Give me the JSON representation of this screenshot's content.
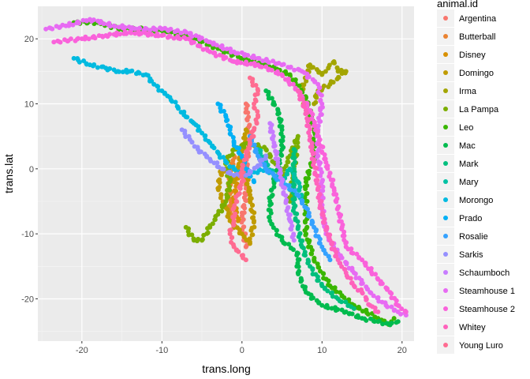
{
  "chart_data": {
    "type": "scatter",
    "title": "",
    "xlabel": "trans.long",
    "ylabel": "trans.lat",
    "xlim": [
      -25.5,
      21.5
    ],
    "ylim": [
      -26.5,
      25
    ],
    "x_ticks": [
      -20,
      -10,
      0,
      10,
      20
    ],
    "y_ticks": [
      -20,
      -10,
      0,
      10,
      20
    ],
    "x_tick_labels": [
      "-20",
      "-10",
      "0",
      "10",
      "20"
    ],
    "y_tick_labels": [
      "-20",
      "-10",
      "0",
      "10",
      "20"
    ],
    "grid": true,
    "panel_background": "#ebebeb",
    "legend": {
      "title": "animal.id",
      "placement": "right"
    },
    "series": [
      {
        "name": "Argentina",
        "color": "#F8766D",
        "values": [
          [
            0.5,
            10
          ],
          [
            1,
            5
          ],
          [
            0.5,
            0
          ],
          [
            0.5,
            -4
          ],
          [
            0,
            -8
          ],
          [
            0.5,
            -12
          ]
        ]
      },
      {
        "name": "Butterball",
        "color": "#EA8331",
        "values": [
          [
            -1,
            2
          ],
          [
            -1.5,
            -2
          ],
          [
            -1.5,
            -6
          ],
          [
            -1,
            -9
          ]
        ]
      },
      {
        "name": "Disney",
        "color": "#D89000",
        "values": [
          [
            0,
            3
          ],
          [
            -0.5,
            -1
          ],
          [
            -1,
            -5
          ],
          [
            -0.5,
            -8
          ]
        ]
      },
      {
        "name": "Domingo",
        "color": "#C09B00",
        "values": [
          [
            0.5,
            6
          ],
          [
            0,
            2
          ],
          [
            -1,
            -2
          ],
          [
            -2.5,
            0
          ],
          [
            -3,
            -3
          ],
          [
            -2,
            -6
          ],
          [
            -1.5,
            -8
          ],
          [
            0,
            -10
          ],
          [
            1,
            -11.5
          ],
          [
            1.5,
            -8
          ],
          [
            1,
            -4
          ],
          [
            0.5,
            -1
          ]
        ]
      },
      {
        "name": "Irma",
        "color": "#A3A500",
        "values": [
          [
            8,
            9
          ],
          [
            7.5,
            12
          ],
          [
            8.5,
            16
          ],
          [
            10,
            14.5
          ],
          [
            11.5,
            16.5
          ],
          [
            12,
            15
          ],
          [
            13,
            15
          ],
          [
            11,
            13
          ],
          [
            9.5,
            12
          ],
          [
            9,
            10
          ]
        ]
      },
      {
        "name": "La Pampa",
        "color": "#7CAE00",
        "values": [
          [
            -7,
            -9
          ],
          [
            -6,
            -11
          ],
          [
            -5,
            -11
          ],
          [
            -4,
            -9
          ],
          [
            -3,
            -7
          ],
          [
            -2,
            -5
          ],
          [
            -1.5,
            -2
          ],
          [
            -2,
            1
          ],
          [
            -1,
            3
          ],
          [
            1,
            4
          ],
          [
            3,
            3
          ],
          [
            4,
            1
          ],
          [
            5,
            -1
          ],
          [
            6,
            2
          ],
          [
            7,
            5
          ],
          [
            6.5,
            0
          ],
          [
            6,
            -5
          ]
        ]
      },
      {
        "name": "Leo",
        "color": "#39B600",
        "values": [
          [
            -21,
            22.5
          ],
          [
            -18,
            22.5
          ],
          [
            -15,
            21.5
          ],
          [
            -12,
            21.5
          ],
          [
            -9,
            21
          ],
          [
            -6,
            20
          ],
          [
            -3,
            18.5
          ],
          [
            0,
            17
          ],
          [
            3,
            16
          ],
          [
            6,
            14.5
          ],
          [
            8,
            11
          ],
          [
            9,
            6
          ],
          [
            9,
            2
          ],
          [
            8,
            -2
          ],
          [
            8,
            -6
          ],
          [
            8,
            -10
          ],
          [
            9,
            -14
          ],
          [
            11,
            -18
          ],
          [
            14,
            -21
          ],
          [
            17,
            -23
          ],
          [
            18.5,
            -24
          ],
          [
            19,
            -23
          ]
        ]
      },
      {
        "name": "Mac",
        "color": "#00BB4E",
        "values": [
          [
            3,
            12
          ],
          [
            4.5,
            9
          ],
          [
            5,
            6
          ],
          [
            5,
            3
          ],
          [
            4.5,
            0
          ],
          [
            4,
            -2
          ],
          [
            3.5,
            -5
          ],
          [
            3.5,
            -8
          ],
          [
            5,
            -11
          ],
          [
            7,
            -13
          ],
          [
            7,
            -16
          ],
          [
            8,
            -19
          ],
          [
            10,
            -21
          ],
          [
            13,
            -22
          ],
          [
            15,
            -23
          ],
          [
            17,
            -23.5
          ],
          [
            18.5,
            -24
          ],
          [
            19.5,
            -23.5
          ]
        ]
      },
      {
        "name": "Mark",
        "color": "#00BF7D",
        "values": [
          [
            6.5,
            3
          ],
          [
            6.5,
            0
          ],
          [
            6.5,
            -3
          ],
          [
            6.5,
            -6
          ],
          [
            7,
            -9
          ],
          [
            7.5,
            -12
          ],
          [
            8.5,
            -15
          ],
          [
            10,
            -18
          ],
          [
            12,
            -20
          ],
          [
            14,
            -21.5
          ]
        ]
      },
      {
        "name": "Mary",
        "color": "#00C1A3",
        "values": [
          [
            2,
            3
          ],
          [
            3,
            1
          ],
          [
            4,
            -1
          ],
          [
            5,
            -2
          ],
          [
            6,
            0
          ],
          [
            7,
            -2
          ],
          [
            7.5,
            -5
          ]
        ]
      },
      {
        "name": "Morongo",
        "color": "#00BAE0",
        "values": [
          [
            -21,
            17
          ],
          [
            -19,
            16
          ],
          [
            -17,
            15.5
          ],
          [
            -15.5,
            15
          ],
          [
            -14,
            15
          ],
          [
            -12,
            14.5
          ],
          [
            -11,
            13
          ],
          [
            -10,
            12
          ],
          [
            -9,
            11
          ],
          [
            -8,
            9.5
          ],
          [
            -7,
            8
          ],
          [
            -6,
            7
          ],
          [
            -5,
            5.5
          ],
          [
            -4,
            4
          ],
          [
            -3,
            2.5
          ],
          [
            -2,
            1
          ],
          [
            -1,
            0
          ],
          [
            0,
            -1
          ],
          [
            1.5,
            -0.5
          ],
          [
            3,
            0
          ],
          [
            4,
            -1
          ],
          [
            5.5,
            -2.5
          ]
        ]
      },
      {
        "name": "Prado",
        "color": "#00B0F6",
        "values": [
          [
            -3,
            10
          ],
          [
            -2,
            8
          ],
          [
            -1.5,
            6
          ],
          [
            -1,
            4
          ],
          [
            0,
            2
          ],
          [
            0.5,
            0
          ],
          [
            1.5,
            -2
          ]
        ]
      },
      {
        "name": "Rosalie",
        "color": "#35A2FF",
        "values": [
          [
            1,
            5
          ],
          [
            2,
            2
          ],
          [
            3,
            0
          ],
          [
            5,
            -2
          ],
          [
            7,
            -4
          ],
          [
            8,
            -6
          ],
          [
            9,
            -9
          ],
          [
            10,
            -12
          ],
          [
            11,
            -14
          ]
        ]
      },
      {
        "name": "Sarkis",
        "color": "#9590FF",
        "values": [
          [
            -7.5,
            6
          ],
          [
            -6.5,
            4.5
          ],
          [
            -5.5,
            3
          ],
          [
            -4,
            1.5
          ],
          [
            -2.5,
            0
          ],
          [
            -1,
            -1
          ],
          [
            0.5,
            -1
          ],
          [
            2,
            0.5
          ],
          [
            3,
            2
          ]
        ]
      },
      {
        "name": "Schaumboch",
        "color": "#C77CFF",
        "values": [
          [
            3.5,
            7
          ],
          [
            4,
            4
          ],
          [
            4.5,
            1
          ],
          [
            5,
            -2
          ],
          [
            5.5,
            -5
          ],
          [
            6,
            -8
          ],
          [
            6.5,
            -11
          ]
        ]
      },
      {
        "name": "Steamhouse 1",
        "color": "#E76BF3",
        "values": [
          [
            -24.5,
            21.5
          ],
          [
            -22,
            22
          ],
          [
            -19,
            23
          ],
          [
            -16,
            22
          ],
          [
            -13,
            21.5
          ],
          [
            -10,
            21.5
          ],
          [
            -7,
            21
          ],
          [
            -4,
            19.5
          ],
          [
            -1,
            18
          ],
          [
            2,
            17
          ],
          [
            5,
            16
          ],
          [
            7.5,
            15
          ],
          [
            9.5,
            13
          ],
          [
            10,
            10
          ],
          [
            9.5,
            6
          ],
          [
            9.5,
            2
          ],
          [
            10,
            -2
          ],
          [
            10,
            -6
          ],
          [
            10.5,
            -10
          ],
          [
            12,
            -13
          ],
          [
            14,
            -16
          ],
          [
            16,
            -19
          ],
          [
            18,
            -21
          ],
          [
            19.5,
            -22
          ],
          [
            20.5,
            -22.5
          ]
        ]
      },
      {
        "name": "Steamhouse 2",
        "color": "#FA62DB",
        "values": [
          [
            -23.5,
            19.5
          ],
          [
            -20,
            20
          ],
          [
            -17,
            20.5
          ],
          [
            -14,
            21
          ],
          [
            -10,
            20.5
          ],
          [
            -7,
            20
          ],
          [
            -4,
            18
          ],
          [
            -1,
            16.5
          ],
          [
            2,
            16
          ],
          [
            5,
            14.5
          ],
          [
            7,
            12
          ],
          [
            8.5,
            9
          ],
          [
            9.5,
            5
          ],
          [
            10.5,
            1
          ],
          [
            11.5,
            -3
          ],
          [
            12,
            -6
          ],
          [
            12.5,
            -9
          ],
          [
            13,
            -12
          ],
          [
            15,
            -14
          ],
          [
            17,
            -17
          ],
          [
            18.5,
            -19
          ],
          [
            19.5,
            -21
          ],
          [
            20.5,
            -22
          ]
        ]
      },
      {
        "name": "Whitey",
        "color": "#FF62BC",
        "values": [
          [
            7,
            12
          ],
          [
            8,
            9
          ],
          [
            8.5,
            5
          ],
          [
            9,
            1
          ],
          [
            9.5,
            -3
          ],
          [
            10,
            -7
          ],
          [
            11,
            -11
          ],
          [
            12,
            -14
          ],
          [
            13,
            -16
          ],
          [
            14,
            -18
          ],
          [
            15,
            -19
          ],
          [
            16,
            -21
          ],
          [
            17,
            -22
          ]
        ]
      },
      {
        "name": "Young Luro",
        "color": "#FF6C91",
        "values": [
          [
            1,
            14
          ],
          [
            2,
            12
          ],
          [
            1.5,
            10
          ],
          [
            2,
            8
          ],
          [
            1.5,
            6
          ],
          [
            1,
            4
          ],
          [
            0.5,
            2
          ],
          [
            0,
            0
          ],
          [
            0,
            -2
          ],
          [
            -0.5,
            -4
          ],
          [
            -1,
            -6
          ],
          [
            -1,
            -8
          ],
          [
            -1.5,
            -10
          ],
          [
            -1,
            -12
          ],
          [
            0.5,
            -14
          ]
        ]
      }
    ]
  }
}
